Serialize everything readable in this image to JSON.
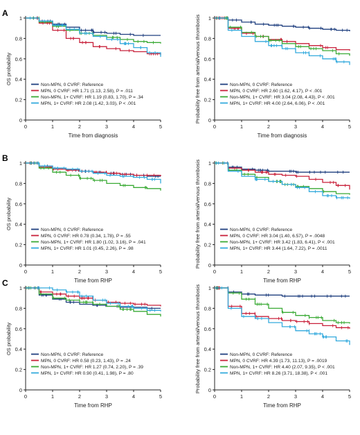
{
  "colors": {
    "non_mpn_0": "#1f3f7f",
    "mpn_0": "#c8203a",
    "non_mpn_1": "#3aaa35",
    "mpn_1": "#33aadd",
    "axis": "#222222"
  },
  "chart_data": [
    {
      "panel": "A",
      "type": "line",
      "title": "",
      "xlabel": "Time from diagnosis",
      "ylabel": "OS probability",
      "xlim": [
        0,
        5
      ],
      "ylim": [
        0,
        1
      ],
      "xticks": [
        "0",
        "1",
        "2",
        "3",
        "4",
        "5"
      ],
      "yticks": [
        "0",
        "0.2",
        "0.4",
        "0.6",
        "0.8",
        "1"
      ],
      "legend_position": "bottom-left",
      "grid": false,
      "legend": [
        {
          "key": "non_mpn_0",
          "text": "Non-MPN, 0 CVRF: Reference"
        },
        {
          "key": "mpn_0",
          "text": "MPN, 0 CVRF: HR 1.71 (1.13, 2.58), P = .011"
        },
        {
          "key": "non_mpn_1",
          "text": "Non-MPN, 1+ CVRF: HR 1.19 (0.83, 1.70), P = .34"
        },
        {
          "key": "mpn_1",
          "text": "MPN, 1+ CVRF: HR 2.08 (1.42, 3.03), P < .001"
        }
      ],
      "series": [
        {
          "key": "non_mpn_0",
          "x": [
            0,
            0.5,
            1.0,
            1.5,
            2.0,
            2.5,
            3.0,
            3.5,
            4.0,
            4.5,
            5.0
          ],
          "y": [
            1.0,
            0.97,
            0.94,
            0.91,
            0.88,
            0.86,
            0.85,
            0.84,
            0.83,
            0.83,
            0.83
          ]
        },
        {
          "key": "mpn_0",
          "x": [
            0,
            0.5,
            1.0,
            1.5,
            2.0,
            2.5,
            3.0,
            3.5,
            4.0,
            4.5,
            5.0
          ],
          "y": [
            1.0,
            0.95,
            0.88,
            0.8,
            0.76,
            0.72,
            0.7,
            0.68,
            0.67,
            0.65,
            0.64
          ]
        },
        {
          "key": "non_mpn_1",
          "x": [
            0,
            0.5,
            1.0,
            1.5,
            2.0,
            2.5,
            3.0,
            3.5,
            4.0,
            4.5,
            5.0
          ],
          "y": [
            1.0,
            0.96,
            0.92,
            0.88,
            0.85,
            0.83,
            0.81,
            0.79,
            0.77,
            0.76,
            0.75
          ]
        },
        {
          "key": "mpn_1",
          "x": [
            0,
            0.5,
            1.0,
            1.5,
            2.0,
            2.5,
            3.0,
            3.5,
            4.0,
            4.5,
            5.0
          ],
          "y": [
            1.0,
            0.97,
            0.93,
            0.89,
            0.85,
            0.82,
            0.79,
            0.75,
            0.71,
            0.66,
            0.62
          ]
        }
      ]
    },
    {
      "panel": "",
      "type": "line",
      "title": "",
      "xlabel": "Time from diagnosis",
      "ylabel": "Probability free from arterial/venous thrombosis",
      "xlim": [
        0,
        5
      ],
      "ylim": [
        0,
        1
      ],
      "xticks": [
        "0",
        "1",
        "2",
        "3",
        "4",
        "5"
      ],
      "yticks": [
        "0",
        "0.2",
        "0.4",
        "0.6",
        "0.8",
        "1"
      ],
      "legend_position": "bottom-left",
      "grid": false,
      "legend": [
        {
          "key": "non_mpn_0",
          "text": "Non-MPN, 0 CVRF: Reference"
        },
        {
          "key": "mpn_0",
          "text": "MPN, 0 CVRF: HR 2.60 (1.62, 4.17), P < .001"
        },
        {
          "key": "non_mpn_1",
          "text": "Non-MPN, 1+ CVRF: HR 3.04 (2.08, 4.43), P < .001"
        },
        {
          "key": "mpn_1",
          "text": "MPN, 1+ CVRF: HR 4.00 (2.64, 6.06), P < .001"
        }
      ],
      "series": [
        {
          "key": "non_mpn_0",
          "x": [
            0,
            0.5,
            1.0,
            1.5,
            2.0,
            2.5,
            3.0,
            3.5,
            4.0,
            4.5,
            5.0
          ],
          "y": [
            1.0,
            0.98,
            0.96,
            0.94,
            0.93,
            0.92,
            0.91,
            0.9,
            0.89,
            0.88,
            0.87
          ]
        },
        {
          "key": "mpn_0",
          "x": [
            0,
            0.5,
            1.0,
            1.5,
            2.0,
            2.5,
            3.0,
            3.5,
            4.0,
            4.5,
            5.0
          ],
          "y": [
            1.0,
            0.9,
            0.85,
            0.82,
            0.79,
            0.77,
            0.75,
            0.73,
            0.71,
            0.69,
            0.68
          ]
        },
        {
          "key": "non_mpn_1",
          "x": [
            0,
            0.5,
            1.0,
            1.5,
            2.0,
            2.5,
            3.0,
            3.5,
            4.0,
            4.5,
            5.0
          ],
          "y": [
            1.0,
            0.91,
            0.86,
            0.82,
            0.78,
            0.75,
            0.72,
            0.7,
            0.68,
            0.65,
            0.63
          ]
        },
        {
          "key": "mpn_1",
          "x": [
            0,
            0.5,
            1.0,
            1.5,
            2.0,
            2.5,
            3.0,
            3.5,
            4.0,
            4.5,
            5.0
          ],
          "y": [
            1.0,
            0.88,
            0.82,
            0.77,
            0.73,
            0.7,
            0.66,
            0.63,
            0.6,
            0.57,
            0.54
          ]
        }
      ]
    },
    {
      "panel": "B",
      "type": "line",
      "title": "",
      "xlabel": "Time from RHP",
      "ylabel": "OS probability",
      "xlim": [
        0,
        5
      ],
      "ylim": [
        0,
        1
      ],
      "xticks": [
        "0",
        "1",
        "2",
        "3",
        "4",
        "5"
      ],
      "yticks": [
        "0",
        "0.2",
        "0.4",
        "0.6",
        "0.8",
        "1"
      ],
      "legend_position": "bottom-left",
      "grid": false,
      "legend": [
        {
          "key": "non_mpn_0",
          "text": "Non-MPN, 0 CVRF: Reference"
        },
        {
          "key": "mpn_0",
          "text": "MPN, 0 CVRF: HR 0.78 (0.34, 1.78), P = .55"
        },
        {
          "key": "non_mpn_1",
          "text": "Non-MPN, 1+ CVRF: HR 1.80 (1.02, 3.16), P = .041"
        },
        {
          "key": "mpn_1",
          "text": "MPN, 1+ CVRF: HR 1.01 (0.45, 2.26), P = .98"
        }
      ],
      "series": [
        {
          "key": "non_mpn_0",
          "x": [
            0,
            0.5,
            1.0,
            1.5,
            2.0,
            2.5,
            3.0,
            3.5,
            4.0,
            4.5,
            5.0
          ],
          "y": [
            1.0,
            0.97,
            0.95,
            0.93,
            0.92,
            0.91,
            0.9,
            0.89,
            0.88,
            0.87,
            0.87
          ]
        },
        {
          "key": "mpn_0",
          "x": [
            0,
            0.5,
            1.0,
            1.5,
            2.0,
            2.5,
            3.0,
            3.5,
            4.0,
            4.5,
            5.0
          ],
          "y": [
            1.0,
            0.96,
            0.94,
            0.93,
            0.92,
            0.91,
            0.9,
            0.89,
            0.88,
            0.88,
            0.87
          ]
        },
        {
          "key": "non_mpn_1",
          "x": [
            0,
            0.5,
            1.0,
            1.5,
            2.0,
            2.5,
            3.0,
            3.5,
            4.0,
            4.5,
            5.0
          ],
          "y": [
            1.0,
            0.95,
            0.91,
            0.88,
            0.85,
            0.83,
            0.8,
            0.78,
            0.76,
            0.75,
            0.73
          ]
        },
        {
          "key": "mpn_1",
          "x": [
            0,
            0.5,
            1.0,
            1.5,
            2.0,
            2.5,
            3.0,
            3.5,
            4.0,
            4.5,
            5.0
          ],
          "y": [
            1.0,
            0.97,
            0.95,
            0.94,
            0.92,
            0.9,
            0.88,
            0.87,
            0.86,
            0.84,
            0.8
          ]
        }
      ]
    },
    {
      "panel": "",
      "type": "line",
      "title": "",
      "xlabel": "Time from RHP",
      "ylabel": "Probability free from arterial/venous thrombosis",
      "xlim": [
        0,
        5
      ],
      "ylim": [
        0,
        1
      ],
      "xticks": [
        "0",
        "1",
        "2",
        "3",
        "4",
        "5"
      ],
      "yticks": [
        "0",
        "0.2",
        "0.4",
        "0.6",
        "0.8",
        "1"
      ],
      "legend_position": "bottom-left",
      "grid": false,
      "legend": [
        {
          "key": "non_mpn_0",
          "text": "Non-MPN, 0 CVRF: Reference"
        },
        {
          "key": "mpn_0",
          "text": "MPN, 0 CVRF: HR 3.04 (1.40, 6.57), P = .0048"
        },
        {
          "key": "non_mpn_1",
          "text": "Non-MPN, 1+ CVRF: HR 3.42 (1.83, 6.41), P < .001"
        },
        {
          "key": "mpn_1",
          "text": "MPN, 1+ CVRF: HR 3.44 (1.64, 7.22), P = .0011"
        }
      ],
      "series": [
        {
          "key": "non_mpn_0",
          "x": [
            0,
            0.5,
            1.0,
            1.5,
            2.0,
            2.5,
            3.0,
            3.5,
            4.0,
            4.5,
            5.0
          ],
          "y": [
            1.0,
            0.96,
            0.94,
            0.93,
            0.92,
            0.92,
            0.91,
            0.91,
            0.91,
            0.91,
            0.91
          ]
        },
        {
          "key": "mpn_0",
          "x": [
            0,
            0.5,
            1.0,
            1.5,
            2.0,
            2.5,
            3.0,
            3.5,
            4.0,
            4.5,
            5.0
          ],
          "y": [
            1.0,
            0.95,
            0.93,
            0.91,
            0.89,
            0.88,
            0.87,
            0.84,
            0.81,
            0.78,
            0.74
          ]
        },
        {
          "key": "non_mpn_1",
          "x": [
            0,
            0.5,
            1.0,
            1.5,
            2.0,
            2.5,
            3.0,
            3.5,
            4.0,
            4.5,
            5.0
          ],
          "y": [
            1.0,
            0.93,
            0.89,
            0.86,
            0.82,
            0.79,
            0.77,
            0.75,
            0.72,
            0.7,
            0.69
          ]
        },
        {
          "key": "mpn_1",
          "x": [
            0,
            0.5,
            1.0,
            1.5,
            2.0,
            2.5,
            3.0,
            3.5,
            4.0,
            4.5,
            5.0
          ],
          "y": [
            1.0,
            0.92,
            0.87,
            0.84,
            0.82,
            0.79,
            0.76,
            0.72,
            0.68,
            0.66,
            0.65
          ]
        }
      ]
    },
    {
      "panel": "C",
      "type": "line",
      "title": "",
      "xlabel": "Time from RHP",
      "ylabel": "OS probability",
      "xlim": [
        0,
        5
      ],
      "ylim": [
        0,
        1
      ],
      "xticks": [
        "0",
        "1",
        "2",
        "3",
        "4",
        "5"
      ],
      "yticks": [
        "0",
        "0.2",
        "0.4",
        "0.6",
        "0.8",
        "1"
      ],
      "legend_position": "bottom-left",
      "grid": false,
      "legend": [
        {
          "key": "non_mpn_0",
          "text": "Non-MPN, 0 CVRF: Reference"
        },
        {
          "key": "mpn_0",
          "text": "MPN, 0 CVRF: HR 0.58 (0.23, 1.43), P = .24"
        },
        {
          "key": "non_mpn_1",
          "text": "Non-MPN, 1+ CVRF: HR 1.27 (0.74, 2.20), P = .39"
        },
        {
          "key": "mpn_1",
          "text": "MPN, 1+ CVRF: HR 0.90 (0.41, 1.98), P = .80"
        }
      ],
      "series": [
        {
          "key": "non_mpn_0",
          "x": [
            0,
            0.5,
            1.0,
            1.5,
            2.0,
            2.5,
            3.0,
            3.5,
            4.0,
            4.5,
            5.0
          ],
          "y": [
            1.0,
            0.93,
            0.89,
            0.86,
            0.84,
            0.83,
            0.82,
            0.81,
            0.81,
            0.8,
            0.8
          ]
        },
        {
          "key": "mpn_0",
          "x": [
            0,
            0.5,
            1.0,
            1.5,
            2.0,
            2.5,
            3.0,
            3.5,
            4.0,
            4.5,
            5.0
          ],
          "y": [
            1.0,
            0.96,
            0.94,
            0.92,
            0.9,
            0.88,
            0.86,
            0.85,
            0.84,
            0.83,
            0.82
          ]
        },
        {
          "key": "non_mpn_1",
          "x": [
            0,
            0.5,
            1.0,
            1.5,
            2.0,
            2.5,
            3.0,
            3.5,
            4.0,
            4.5,
            5.0
          ],
          "y": [
            1.0,
            0.94,
            0.9,
            0.88,
            0.86,
            0.84,
            0.82,
            0.79,
            0.77,
            0.74,
            0.72
          ]
        },
        {
          "key": "mpn_1",
          "x": [
            0,
            0.5,
            1.0,
            1.5,
            2.0,
            2.5,
            3.0,
            3.5,
            4.0,
            4.5,
            5.0
          ],
          "y": [
            1.0,
            1.0,
            0.98,
            0.96,
            0.92,
            0.88,
            0.85,
            0.82,
            0.8,
            0.78,
            0.77
          ]
        }
      ]
    },
    {
      "panel": "",
      "type": "line",
      "title": "",
      "xlabel": "Time from RHP",
      "ylabel": "Probability free from arterial/venous thrombosis",
      "xlim": [
        0,
        5
      ],
      "ylim": [
        0,
        1
      ],
      "xticks": [
        "0",
        "1",
        "2",
        "3",
        "4",
        "5"
      ],
      "yticks": [
        "0",
        "0.2",
        "0.4",
        "0.6",
        "0.8",
        "1"
      ],
      "legend_position": "bottom-left",
      "grid": false,
      "legend": [
        {
          "key": "non_mpn_0",
          "text": "Non-MPN, 0 CVRF: Reference"
        },
        {
          "key": "mpn_0",
          "text": "MPN, 0 CVRF: HR 4.39 (1.73, 11.13), P = .0019"
        },
        {
          "key": "non_mpn_1",
          "text": "Non-MPN, 1+ CVRF: HR 4.40 (2.07, 9.35), P < .001"
        },
        {
          "key": "mpn_1",
          "text": "MPN, 1+ CVRF: HR 8.26 (3.71, 18.38), P < .001"
        }
      ],
      "series": [
        {
          "key": "non_mpn_0",
          "x": [
            0,
            0.5,
            1.0,
            1.5,
            2.0,
            2.5,
            3.0,
            3.5,
            4.0,
            4.5,
            5.0
          ],
          "y": [
            1.0,
            0.96,
            0.94,
            0.93,
            0.93,
            0.92,
            0.92,
            0.92,
            0.92,
            0.92,
            0.92
          ]
        },
        {
          "key": "mpn_0",
          "x": [
            0,
            0.5,
            1.0,
            1.5,
            2.0,
            2.5,
            3.0,
            3.5,
            4.0,
            4.5,
            5.0
          ],
          "y": [
            1.0,
            0.82,
            0.75,
            0.72,
            0.7,
            0.68,
            0.67,
            0.65,
            0.63,
            0.61,
            0.6
          ]
        },
        {
          "key": "non_mpn_1",
          "x": [
            0,
            0.5,
            1.0,
            1.5,
            2.0,
            2.5,
            3.0,
            3.5,
            4.0,
            4.5,
            5.0
          ],
          "y": [
            1.0,
            0.95,
            0.89,
            0.84,
            0.8,
            0.76,
            0.73,
            0.71,
            0.68,
            0.66,
            0.65
          ]
        },
        {
          "key": "mpn_1",
          "x": [
            0,
            0.5,
            1.0,
            1.5,
            2.0,
            2.5,
            3.0,
            3.5,
            4.0,
            4.5,
            5.0
          ],
          "y": [
            1.0,
            0.8,
            0.72,
            0.7,
            0.66,
            0.62,
            0.58,
            0.55,
            0.52,
            0.48,
            0.44
          ]
        }
      ]
    }
  ]
}
